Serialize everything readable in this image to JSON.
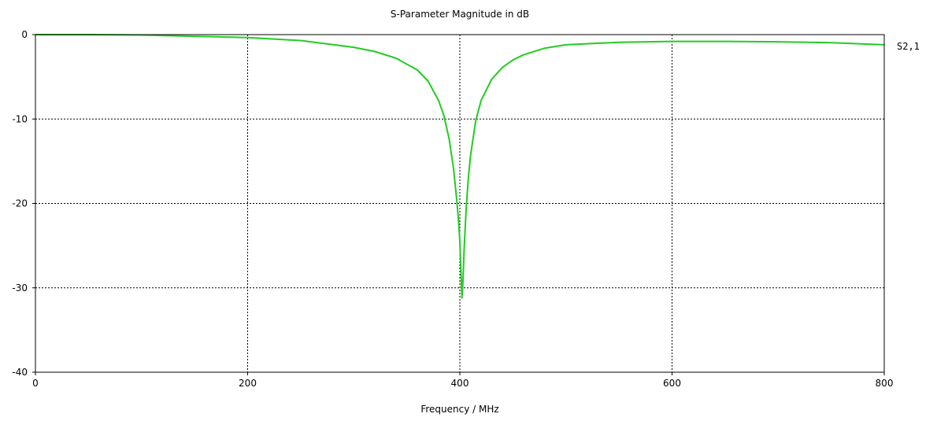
{
  "chart_data": {
    "type": "line",
    "title": "S-Parameter Magnitude in dB",
    "xlabel": "Frequency / MHz",
    "ylabel": "",
    "xlim": [
      0,
      800
    ],
    "ylim": [
      -40,
      0
    ],
    "grid": true,
    "x_ticks": [
      0,
      200,
      400,
      600,
      800
    ],
    "y_ticks": [
      0,
      -10,
      -20,
      -30,
      -40
    ],
    "x_tick_labels": [
      "0",
      "200",
      "400",
      "600",
      "800"
    ],
    "y_tick_labels": [
      "0",
      "-10",
      "-20",
      "-30",
      "-40"
    ],
    "series": [
      {
        "name": "S2,1",
        "color": "#22cc22",
        "x": [
          0,
          50,
          100,
          150,
          200,
          250,
          300,
          320,
          340,
          360,
          370,
          380,
          385,
          390,
          394,
          397,
          399,
          400,
          401,
          402,
          403,
          404,
          406,
          408,
          410,
          415,
          420,
          430,
          440,
          450,
          460,
          480,
          500,
          550,
          600,
          650,
          700,
          750,
          800
        ],
        "y": [
          0,
          0,
          -0.05,
          -0.2,
          -0.35,
          -0.7,
          -1.5,
          -2.0,
          -2.8,
          -4.2,
          -5.5,
          -7.8,
          -9.6,
          -12.4,
          -15.8,
          -19.5,
          -22.5,
          -24.5,
          -27.8,
          -31.2,
          -29.2,
          -25.5,
          -20.5,
          -17.0,
          -14.4,
          -10.2,
          -7.8,
          -5.3,
          -3.9,
          -3.0,
          -2.4,
          -1.6,
          -1.2,
          -0.9,
          -0.8,
          -0.8,
          -0.85,
          -0.95,
          -1.2
        ]
      }
    ]
  }
}
